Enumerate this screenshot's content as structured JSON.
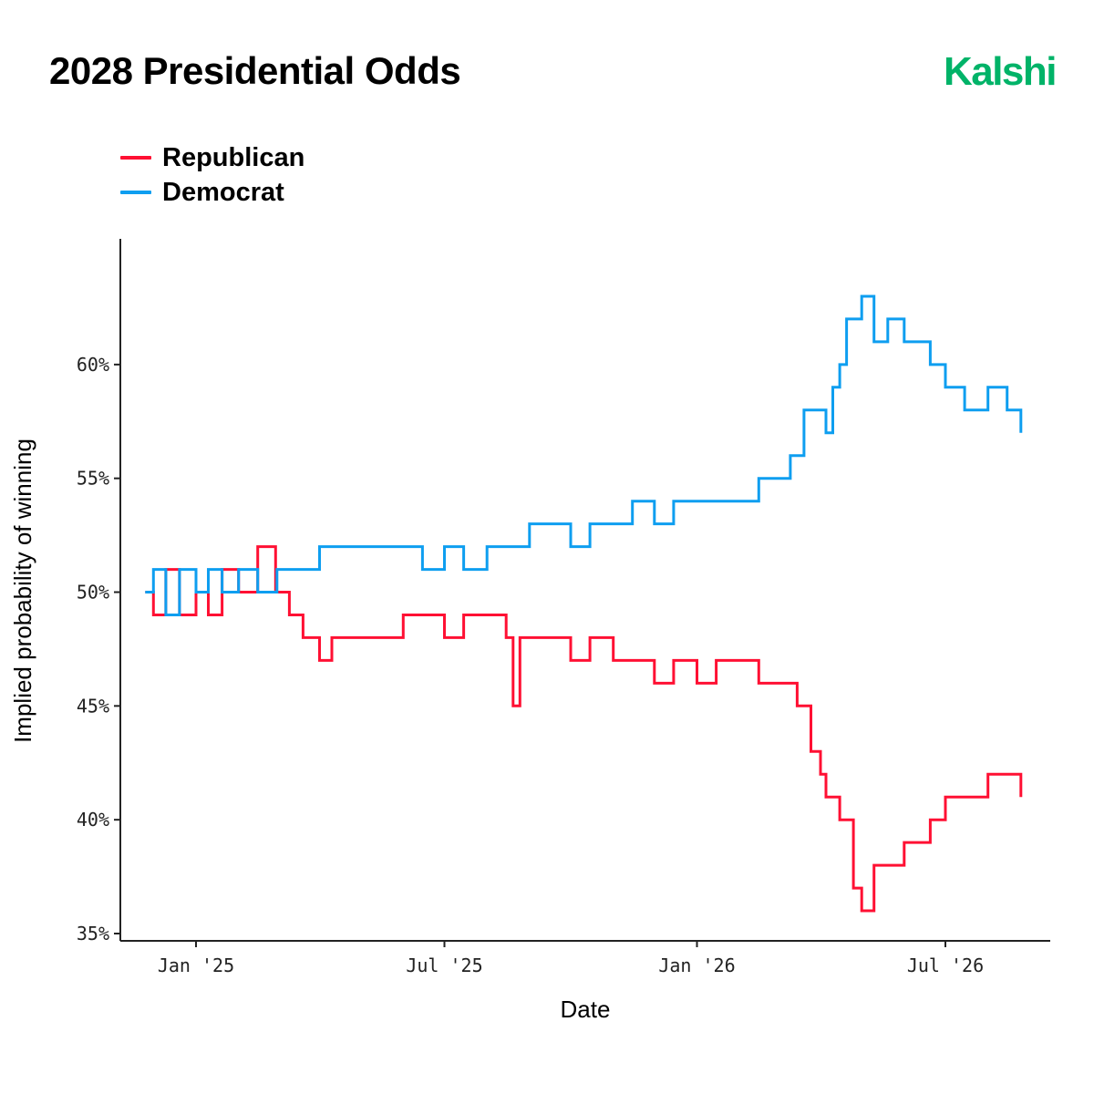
{
  "title": "2028 Presidential Odds",
  "brand": "Kalshi",
  "chart_data": {
    "type": "line",
    "xlabel": "Date",
    "ylabel": "Implied probability of winning",
    "ylim": [
      35,
      64
    ],
    "xlim": [
      "2024-11-25",
      "2026-10-01"
    ],
    "y_ticks": [
      {
        "value": 35,
        "label": "35%"
      },
      {
        "value": 40,
        "label": "40%"
      },
      {
        "value": 45,
        "label": "45%"
      },
      {
        "value": 50,
        "label": "50%"
      },
      {
        "value": 55,
        "label": "55%"
      },
      {
        "value": 60,
        "label": "60%"
      }
    ],
    "x_ticks": [
      {
        "value": "2025-01-01",
        "label": "Jan '25"
      },
      {
        "value": "2025-07-01",
        "label": "Jul '25"
      },
      {
        "value": "2026-01-01",
        "label": "Jan '26"
      },
      {
        "value": "2026-07-01",
        "label": "Jul '26"
      }
    ],
    "grid": false,
    "legend_position": "top-left",
    "series": [
      {
        "name": "Republican",
        "color": "#ff1033",
        "x": [
          "2024-11-25",
          "2024-12-01",
          "2024-12-10",
          "2024-12-20",
          "2025-01-01",
          "2025-01-10",
          "2025-01-20",
          "2025-02-01",
          "2025-02-15",
          "2025-02-28",
          "2025-03-10",
          "2025-03-20",
          "2025-04-01",
          "2025-04-10",
          "2025-04-20",
          "2025-05-01",
          "2025-05-15",
          "2025-06-01",
          "2025-06-15",
          "2025-07-01",
          "2025-07-15",
          "2025-08-01",
          "2025-08-15",
          "2025-08-20",
          "2025-08-25",
          "2025-09-01",
          "2025-09-15",
          "2025-10-01",
          "2025-10-15",
          "2025-11-01",
          "2025-11-15",
          "2025-12-01",
          "2025-12-15",
          "2026-01-01",
          "2026-01-15",
          "2026-02-01",
          "2026-02-15",
          "2026-03-01",
          "2026-03-15",
          "2026-03-25",
          "2026-04-01",
          "2026-04-05",
          "2026-04-15",
          "2026-04-25",
          "2026-05-01",
          "2026-05-10",
          "2026-05-20",
          "2026-06-01",
          "2026-06-10",
          "2026-06-20",
          "2026-07-01",
          "2026-07-15",
          "2026-08-01",
          "2026-08-15",
          "2026-08-25"
        ],
        "values": [
          50,
          49,
          51,
          49,
          50,
          49,
          51,
          50,
          52,
          50,
          49,
          48,
          47,
          48,
          48,
          48,
          48,
          49,
          49,
          48,
          49,
          49,
          48,
          45,
          48,
          48,
          48,
          47,
          48,
          47,
          47,
          46,
          47,
          46,
          47,
          47,
          46,
          46,
          45,
          43,
          42,
          41,
          40,
          37,
          36,
          38,
          38,
          39,
          39,
          40,
          41,
          41,
          42,
          42,
          41
        ]
      },
      {
        "name": "Democrat",
        "color": "#0e9ef0",
        "x": [
          "2024-11-25",
          "2024-12-01",
          "2024-12-10",
          "2024-12-20",
          "2025-01-01",
          "2025-01-10",
          "2025-01-20",
          "2025-02-01",
          "2025-02-15",
          "2025-03-01",
          "2025-03-15",
          "2025-03-25",
          "2025-04-01",
          "2025-04-15",
          "2025-05-01",
          "2025-05-15",
          "2025-06-01",
          "2025-06-15",
          "2025-07-01",
          "2025-07-15",
          "2025-08-01",
          "2025-08-15",
          "2025-09-01",
          "2025-09-15",
          "2025-10-01",
          "2025-10-15",
          "2025-11-01",
          "2025-11-15",
          "2025-12-01",
          "2025-12-15",
          "2026-01-01",
          "2026-01-15",
          "2026-02-01",
          "2026-02-15",
          "2026-03-01",
          "2026-03-10",
          "2026-03-20",
          "2026-04-01",
          "2026-04-05",
          "2026-04-10",
          "2026-04-15",
          "2026-04-20",
          "2026-05-01",
          "2026-05-10",
          "2026-05-20",
          "2026-06-01",
          "2026-06-10",
          "2026-06-20",
          "2026-07-01",
          "2026-07-15",
          "2026-08-01",
          "2026-08-15",
          "2026-08-25"
        ],
        "values": [
          50,
          51,
          49,
          51,
          50,
          51,
          50,
          51,
          50,
          51,
          51,
          51,
          52,
          52,
          52,
          52,
          52,
          51,
          52,
          51,
          52,
          52,
          53,
          53,
          52,
          53,
          53,
          54,
          53,
          54,
          54,
          54,
          54,
          55,
          55,
          56,
          58,
          58,
          57,
          59,
          60,
          62,
          63,
          61,
          62,
          61,
          61,
          60,
          59,
          58,
          59,
          58,
          57
        ]
      }
    ]
  }
}
